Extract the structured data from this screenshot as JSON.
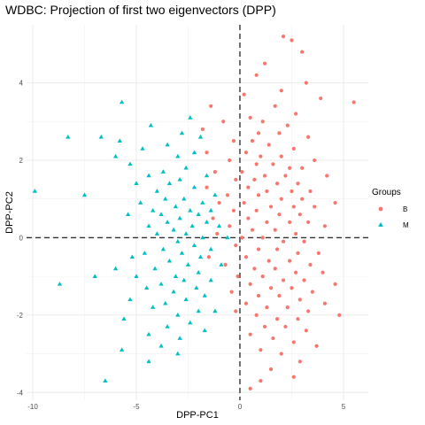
{
  "chart_data": {
    "type": "scatter",
    "title": "WDBC: Projection of first two eigenvectors (DPP)",
    "xlabel": "DPP-PC1",
    "ylabel": "DPP-PC2",
    "xlim": [
      -10.3,
      6.2
    ],
    "ylim": [
      -4.2,
      5.5
    ],
    "xticks": [
      -10,
      -5,
      0,
      5
    ],
    "yticks": [
      -4,
      -2,
      0,
      2,
      4
    ],
    "xtick_labels": [
      "-10",
      "-5",
      "0",
      "5"
    ],
    "ytick_labels": [
      "-4",
      "-2",
      "0",
      "2",
      "4"
    ],
    "grid": true,
    "reference_lines": {
      "x": 0,
      "y": 0,
      "style": "dashed"
    },
    "legend": {
      "title": "Groups",
      "placement": "right",
      "entries": [
        {
          "label": "B",
          "color": "#F8766D",
          "shape": "circle"
        },
        {
          "label": "M",
          "color": "#00BFC4",
          "shape": "triangle"
        }
      ]
    },
    "series": [
      {
        "name": "B",
        "color": "#F8766D",
        "shape": "circle",
        "points": [
          [
            2.1,
            5.2
          ],
          [
            2.5,
            5.1
          ],
          [
            1.2,
            4.5
          ],
          [
            3.0,
            4.8
          ],
          [
            0.8,
            4.2
          ],
          [
            3.2,
            4.0
          ],
          [
            2.0,
            3.8
          ],
          [
            0.2,
            3.7
          ],
          [
            3.9,
            3.6
          ],
          [
            5.5,
            3.5
          ],
          [
            -1.4,
            3.4
          ],
          [
            1.7,
            3.4
          ],
          [
            2.7,
            3.2
          ],
          [
            0.5,
            3.1
          ],
          [
            -0.8,
            3.0
          ],
          [
            1.1,
            3.0
          ],
          [
            2.3,
            2.9
          ],
          [
            -1.8,
            2.8
          ],
          [
            0.9,
            2.7
          ],
          [
            1.9,
            2.7
          ],
          [
            3.3,
            2.6
          ],
          [
            -0.3,
            2.5
          ],
          [
            0.6,
            2.5
          ],
          [
            1.4,
            2.4
          ],
          [
            2.6,
            2.3
          ],
          [
            -1.6,
            2.2
          ],
          [
            0.3,
            2.2
          ],
          [
            1.0,
            2.1
          ],
          [
            2.0,
            2.1
          ],
          [
            3.6,
            2.0
          ],
          [
            -0.5,
            2.0
          ],
          [
            0.8,
            1.9
          ],
          [
            1.6,
            1.9
          ],
          [
            2.4,
            1.8
          ],
          [
            3.0,
            1.8
          ],
          [
            -1.2,
            1.7
          ],
          [
            0.1,
            1.7
          ],
          [
            1.2,
            1.6
          ],
          [
            2.2,
            1.6
          ],
          [
            4.2,
            1.6
          ],
          [
            -0.2,
            1.5
          ],
          [
            0.7,
            1.5
          ],
          [
            1.8,
            1.4
          ],
          [
            2.8,
            1.4
          ],
          [
            -1.6,
            1.3
          ],
          [
            0.4,
            1.3
          ],
          [
            1.3,
            1.2
          ],
          [
            2.5,
            1.2
          ],
          [
            3.4,
            1.2
          ],
          [
            -0.6,
            1.1
          ],
          [
            0.9,
            1.1
          ],
          [
            2.0,
            1.0
          ],
          [
            3.0,
            1.0
          ],
          [
            4.6,
            0.9
          ],
          [
            -1.0,
            0.9
          ],
          [
            0.2,
            0.9
          ],
          [
            1.5,
            0.8
          ],
          [
            2.6,
            0.8
          ],
          [
            3.6,
            0.8
          ],
          [
            -0.3,
            0.7
          ],
          [
            0.8,
            0.7
          ],
          [
            1.9,
            0.6
          ],
          [
            2.9,
            0.6
          ],
          [
            -1.3,
            0.5
          ],
          [
            0.4,
            0.5
          ],
          [
            1.3,
            0.4
          ],
          [
            2.4,
            0.4
          ],
          [
            3.3,
            0.4
          ],
          [
            4.1,
            0.3
          ],
          [
            -0.5,
            0.3
          ],
          [
            0.6,
            0.2
          ],
          [
            1.7,
            0.2
          ],
          [
            2.7,
            0.1
          ],
          [
            -1.1,
            0.1
          ],
          [
            0.1,
            0.0
          ],
          [
            1.1,
            0.0
          ],
          [
            2.1,
            -0.1
          ],
          [
            3.1,
            -0.1
          ],
          [
            -0.2,
            -0.2
          ],
          [
            0.9,
            -0.3
          ],
          [
            1.8,
            -0.3
          ],
          [
            2.8,
            -0.4
          ],
          [
            3.8,
            -0.4
          ],
          [
            -1.5,
            -0.5
          ],
          [
            0.3,
            -0.5
          ],
          [
            1.4,
            -0.6
          ],
          [
            2.4,
            -0.6
          ],
          [
            3.4,
            -0.7
          ],
          [
            -0.7,
            -0.7
          ],
          [
            0.7,
            -0.8
          ],
          [
            1.7,
            -0.8
          ],
          [
            2.7,
            -0.9
          ],
          [
            4.0,
            -0.9
          ],
          [
            -0.1,
            -1.0
          ],
          [
            1.1,
            -1.0
          ],
          [
            2.1,
            -1.1
          ],
          [
            3.1,
            -1.1
          ],
          [
            4.6,
            -1.2
          ],
          [
            0.5,
            -1.2
          ],
          [
            1.5,
            -1.3
          ],
          [
            2.5,
            -1.3
          ],
          [
            3.5,
            -1.4
          ],
          [
            -0.4,
            -1.4
          ],
          [
            0.9,
            -1.5
          ],
          [
            1.9,
            -1.5
          ],
          [
            2.9,
            -1.6
          ],
          [
            4.1,
            -1.7
          ],
          [
            0.3,
            -1.7
          ],
          [
            1.3,
            -1.8
          ],
          [
            2.3,
            -1.8
          ],
          [
            3.3,
            -1.9
          ],
          [
            -0.2,
            -1.9
          ],
          [
            0.8,
            -2.0
          ],
          [
            1.8,
            -2.1
          ],
          [
            2.8,
            -2.1
          ],
          [
            4.8,
            -2.0
          ],
          [
            1.2,
            -2.3
          ],
          [
            2.2,
            -2.3
          ],
          [
            3.2,
            -2.4
          ],
          [
            0.5,
            -2.5
          ],
          [
            1.6,
            -2.6
          ],
          [
            2.6,
            -2.7
          ],
          [
            3.7,
            -2.8
          ],
          [
            1.0,
            -2.9
          ],
          [
            2.0,
            -3.0
          ],
          [
            2.9,
            -3.2
          ],
          [
            1.5,
            -3.4
          ],
          [
            2.6,
            -3.6
          ],
          [
            1.0,
            -3.7
          ],
          [
            0.5,
            -3.9
          ]
        ]
      },
      {
        "name": "M",
        "color": "#00BFC4",
        "shape": "triangle",
        "points": [
          [
            -5.7,
            3.5
          ],
          [
            -2.4,
            3.1
          ],
          [
            -4.3,
            2.9
          ],
          [
            -2.8,
            2.7
          ],
          [
            -1.9,
            2.6
          ],
          [
            -6.7,
            2.6
          ],
          [
            -8.3,
            2.6
          ],
          [
            -5.8,
            2.5
          ],
          [
            -3.5,
            2.4
          ],
          [
            -4.7,
            2.3
          ],
          [
            -2.2,
            2.2
          ],
          [
            -3.0,
            2.1
          ],
          [
            -6.0,
            2.1
          ],
          [
            -5.3,
            1.9
          ],
          [
            -2.6,
            1.8
          ],
          [
            -3.7,
            1.7
          ],
          [
            -4.4,
            1.6
          ],
          [
            -1.6,
            1.6
          ],
          [
            -2.9,
            1.5
          ],
          [
            -5.0,
            1.4
          ],
          [
            -3.4,
            1.4
          ],
          [
            -2.2,
            1.3
          ],
          [
            -4.0,
            1.2
          ],
          [
            -9.9,
            1.2
          ],
          [
            -7.5,
            1.1
          ],
          [
            -1.2,
            1.1
          ],
          [
            -2.7,
            1.0
          ],
          [
            -3.6,
            1.0
          ],
          [
            -4.8,
            0.9
          ],
          [
            -1.8,
            0.9
          ],
          [
            -3.1,
            0.8
          ],
          [
            -2.4,
            0.7
          ],
          [
            -4.2,
            0.7
          ],
          [
            -1.4,
            0.7
          ],
          [
            -3.8,
            0.6
          ],
          [
            -2.0,
            0.6
          ],
          [
            -5.4,
            0.6
          ],
          [
            -2.9,
            0.5
          ],
          [
            -3.5,
            0.4
          ],
          [
            -1.6,
            0.4
          ],
          [
            -4.4,
            0.3
          ],
          [
            -2.3,
            0.3
          ],
          [
            -1.0,
            0.3
          ],
          [
            -3.2,
            0.2
          ],
          [
            -2.6,
            0.1
          ],
          [
            -4.0,
            0.1
          ],
          [
            -1.8,
            0.0
          ],
          [
            -0.6,
            0.0
          ],
          [
            -3.0,
            -0.1
          ],
          [
            -2.2,
            -0.2
          ],
          [
            -3.7,
            -0.3
          ],
          [
            -1.4,
            -0.3
          ],
          [
            -4.6,
            -0.4
          ],
          [
            -2.8,
            -0.4
          ],
          [
            -5.2,
            -0.5
          ],
          [
            -1.9,
            -0.5
          ],
          [
            -3.4,
            -0.6
          ],
          [
            -2.5,
            -0.7
          ],
          [
            -0.9,
            -0.7
          ],
          [
            -4.1,
            -0.8
          ],
          [
            -6.0,
            -0.8
          ],
          [
            -2.0,
            -0.9
          ],
          [
            -3.1,
            -1.0
          ],
          [
            -5.0,
            -1.0
          ],
          [
            -7.0,
            -1.0
          ],
          [
            -1.4,
            -1.1
          ],
          [
            -2.7,
            -1.1
          ],
          [
            -3.8,
            -1.2
          ],
          [
            -8.7,
            -1.2
          ],
          [
            -2.1,
            -1.3
          ],
          [
            -4.5,
            -1.3
          ],
          [
            -3.2,
            -1.4
          ],
          [
            -1.7,
            -1.5
          ],
          [
            -2.6,
            -1.6
          ],
          [
            -5.3,
            -1.6
          ],
          [
            -3.6,
            -1.7
          ],
          [
            -4.2,
            -1.8
          ],
          [
            -2.0,
            -1.9
          ],
          [
            -1.2,
            -1.9
          ],
          [
            -3.0,
            -2.0
          ],
          [
            -5.6,
            -2.1
          ],
          [
            -2.4,
            -2.2
          ],
          [
            -3.5,
            -2.3
          ],
          [
            -1.7,
            -2.4
          ],
          [
            -4.4,
            -2.5
          ],
          [
            -2.9,
            -2.6
          ],
          [
            -3.8,
            -2.8
          ],
          [
            -5.7,
            -2.9
          ],
          [
            -3.0,
            -3.0
          ],
          [
            -4.4,
            -3.2
          ],
          [
            -6.5,
            -3.7
          ]
        ]
      }
    ]
  }
}
